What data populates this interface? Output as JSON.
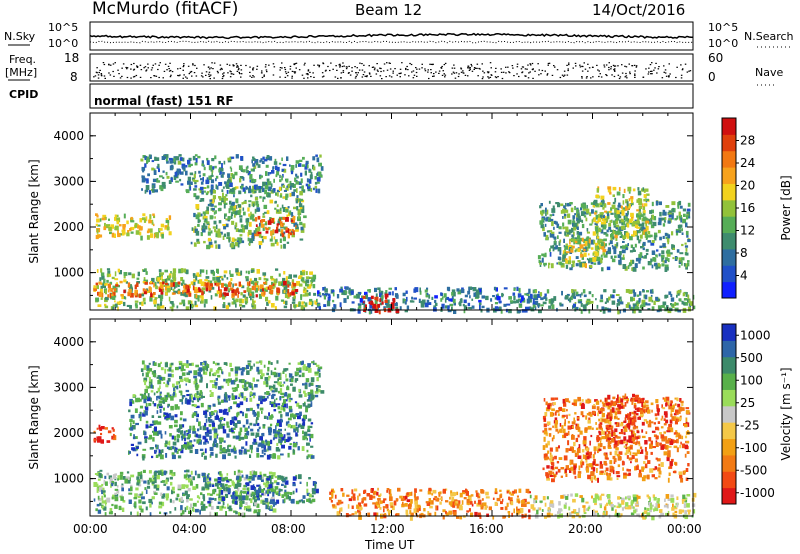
{
  "header": {
    "station": "McMurdo (fitACF)",
    "beam": "Beam 12",
    "date": "14/Oct/2016"
  },
  "top_panels": {
    "nsky_label": "N.Sky",
    "nsearch_label": "N.Search",
    "noise_ticks": [
      "10^5",
      "10^0"
    ],
    "freq_label_1": "Freq.",
    "freq_label_2": "[MHz]",
    "freq_ticks": [
      "18",
      "8"
    ],
    "nave_label": "Nave",
    "nave_ticks": [
      "60",
      "0"
    ],
    "cpid_label": "CPID",
    "cpid_text": "normal (fast) 151 RF"
  },
  "colors": {
    "power": [
      "#1020ff",
      "#2050c8",
      "#2e6ea0",
      "#3e8c6e",
      "#56ad57",
      "#92c23a",
      "#f2d21e",
      "#f7a21c",
      "#f27812",
      "#e0400c",
      "#d01010"
    ],
    "velocity": [
      "#e01818",
      "#f24a14",
      "#f27a14",
      "#f2a014",
      "#f4c848",
      "#c8c8c8",
      "#9adc5a",
      "#58b04a",
      "#3c8a6a",
      "#2e66a8",
      "#1830c0"
    ]
  },
  "chart_data": [
    {
      "type": "heatmap",
      "title": "Power",
      "quantity": "power",
      "ylabel": "Slant Range [km]",
      "yticks": [
        "1000",
        "2000",
        "3000",
        "4000"
      ],
      "ylim": [
        180,
        4500
      ],
      "xlim": [
        0,
        24
      ],
      "colorbar_label": "Power [dB]",
      "colorbar_ticks": [
        "4",
        "8",
        "12",
        "16",
        "20",
        "24",
        "28"
      ],
      "regions": [
        {
          "t0": 0.1,
          "t1": 9.0,
          "r0": 250,
          "r1": 1100,
          "level": 0.45
        },
        {
          "t0": 0.1,
          "t1": 8.2,
          "r0": 520,
          "r1": 820,
          "level": 0.8
        },
        {
          "t0": 0.1,
          "t1": 3.2,
          "r0": 1800,
          "r1": 2300,
          "level": 0.55
        },
        {
          "t0": 4.0,
          "t1": 8.5,
          "r0": 1600,
          "r1": 2900,
          "level": 0.4
        },
        {
          "t0": 6.5,
          "t1": 8.2,
          "r0": 1850,
          "r1": 2250,
          "level": 0.8
        },
        {
          "t0": 2.0,
          "t1": 9.2,
          "r0": 2800,
          "r1": 3600,
          "level": 0.3
        },
        {
          "t0": 9.0,
          "t1": 18.0,
          "r0": 180,
          "r1": 700,
          "level": 0.25
        },
        {
          "t0": 10.8,
          "t1": 12.2,
          "r0": 180,
          "r1": 550,
          "level": 0.95
        },
        {
          "t0": 17.5,
          "t1": 24.0,
          "r0": 180,
          "r1": 650,
          "level": 0.35
        },
        {
          "t0": 17.8,
          "t1": 23.8,
          "r0": 1100,
          "r1": 2600,
          "level": 0.35
        },
        {
          "t0": 18.8,
          "t1": 20.5,
          "r0": 1200,
          "r1": 1800,
          "level": 0.55
        },
        {
          "t0": 20.0,
          "t1": 22.2,
          "r0": 1800,
          "r1": 2900,
          "level": 0.5
        }
      ]
    },
    {
      "type": "heatmap",
      "title": "Velocity",
      "quantity": "velocity",
      "ylabel": "Slant Range [km]",
      "yticks": [
        "1000",
        "2000",
        "3000",
        "4000"
      ],
      "ylim": [
        180,
        4500
      ],
      "xlim": [
        0,
        24
      ],
      "colorbar_label": "Velocity [m s⁻¹]",
      "colorbar_ticks": [
        "1000",
        "500",
        "100",
        "25",
        "-25",
        "-100",
        "-500",
        "-1000"
      ],
      "regions": [
        {
          "t0": 0.1,
          "t1": 7.5,
          "r0": 250,
          "r1": 1200,
          "level": 0.68
        },
        {
          "t0": 4.5,
          "t1": 9.0,
          "r0": 500,
          "r1": 1100,
          "level": 0.8
        },
        {
          "t0": 0.1,
          "t1": 1.0,
          "r0": 1800,
          "r1": 2200,
          "level": 0.05
        },
        {
          "t0": 1.5,
          "t1": 8.8,
          "r0": 1500,
          "r1": 2900,
          "level": 0.8
        },
        {
          "t0": 2.0,
          "t1": 9.2,
          "r0": 2800,
          "r1": 3600,
          "level": 0.72
        },
        {
          "t0": 9.5,
          "t1": 17.5,
          "r0": 180,
          "r1": 800,
          "level": 0.25
        },
        {
          "t0": 17.5,
          "t1": 24.0,
          "r0": 180,
          "r1": 700,
          "level": 0.5
        },
        {
          "t0": 18.0,
          "t1": 23.8,
          "r0": 1000,
          "r1": 2800,
          "level": 0.22
        },
        {
          "t0": 20.5,
          "t1": 22.0,
          "r0": 1800,
          "r1": 2900,
          "level": 0.1
        }
      ]
    }
  ],
  "xaxis": {
    "ticks": [
      "00:00",
      "04:00",
      "08:00",
      "12:00",
      "16:00",
      "20:00",
      "00:00"
    ],
    "label": "Time UT"
  }
}
